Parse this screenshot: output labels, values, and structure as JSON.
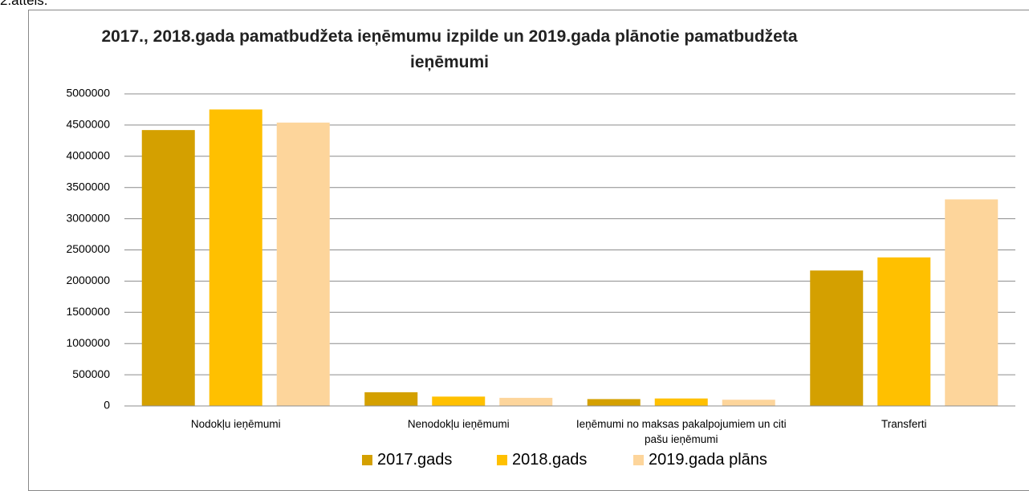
{
  "caption": "2.attēls.",
  "chart_data": {
    "type": "bar",
    "title": "2017., 2018.gada pamatbudžeta ieņēmumu izpilde un 2019.gada plānotie pamatbudžeta ieņēmumi",
    "categories": [
      "Nodokļu ieņēmumi",
      "Nenodokļu ieņēmumi",
      "Ieņēmumi no maksas pakalpojumiem un citi pašu ieņēmumi",
      "Transferti"
    ],
    "series": [
      {
        "name": "2017.gads",
        "color": "#d4a000",
        "values": [
          4420000,
          220000,
          110000,
          2170000
        ]
      },
      {
        "name": "2018.gads",
        "color": "#ffc000",
        "values": [
          4750000,
          150000,
          120000,
          2380000
        ]
      },
      {
        "name": "2019.gada plāns",
        "color": "#fdd59b",
        "values": [
          4540000,
          130000,
          100000,
          3310000
        ]
      }
    ],
    "ylim": [
      0,
      5000000
    ],
    "yticks": [
      0,
      500000,
      1000000,
      1500000,
      2000000,
      2500000,
      3000000,
      3500000,
      4000000,
      4500000,
      5000000
    ],
    "grid": true,
    "legend": "bottom"
  }
}
